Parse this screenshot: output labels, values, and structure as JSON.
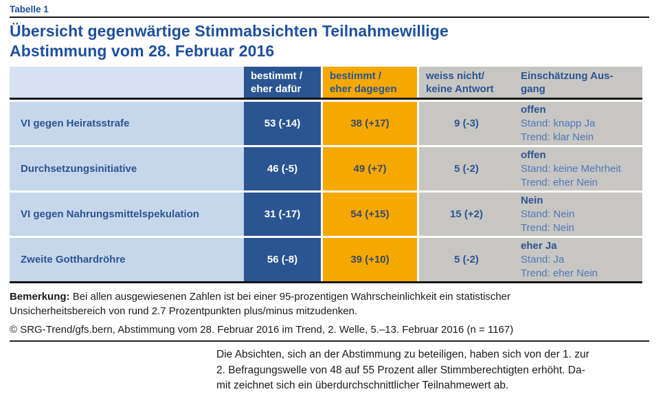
{
  "page": {
    "kicker": "Tabelle 1",
    "title": "Übersicht gegenwärtige Stimmabsichten Teilnahmewillige\nAbstimmung vom 28. Februar 2016"
  },
  "table": {
    "type": "table",
    "columns": {
      "dafuer": "bestimmt /\neher dafür",
      "dagegen": "bestimmt /\neher dagegen",
      "weiss_nicht": "weiss nicht/\nkeine Antwort",
      "einschaetzung": "Einschätzung Aus-\ngang"
    },
    "rows": [
      {
        "label": "VI gegen Heiratsstrafe",
        "dafuer": "53 (-14)",
        "dagegen": "38 (+17)",
        "weiss_nicht": "9 (-3)",
        "verdict": "offen",
        "stand": "Stand: knapp Ja",
        "trend": "Trend: klar Nein"
      },
      {
        "label": "Durchsetzungsinitiative",
        "dafuer": "46 (-5)",
        "dagegen": "49 (+7)",
        "weiss_nicht": "5 (-2)",
        "verdict": "offen",
        "stand": "Stand: keine Mehrheit",
        "trend": "Trend: eher Nein"
      },
      {
        "label": "VI gegen Nahrungsmittelspekulation",
        "dafuer": "31 (-17)",
        "dagegen": "54 (+15)",
        "weiss_nicht": "15 (+2)",
        "verdict": "Nein",
        "stand": "Stand: Nein",
        "trend": "Trend: Nein"
      },
      {
        "label": "Zweite Gotthardröhre",
        "dafuer": "56 (-8)",
        "dagegen": "39 (+10)",
        "weiss_nicht": "5 (-2)",
        "verdict": "eher Ja",
        "stand": "Stand: Ja",
        "trend": "Trend: eher Nein"
      }
    ]
  },
  "notes": {
    "bemerkung_label": "Bemerkung:",
    "bemerkung_text": " Bei allen ausgewiesenen Zahlen ist bei einer 95-prozentigen Wahrscheinlichkeit ein statistischer\nUnsicherheitsbereich von rund 2.7 Prozentpunkten plus/minus mitzudenken.",
    "source": "© SRG-Trend/gfs.bern, Abstimmung vom 28. Februar 2016 im Trend, 2. Welle, 5.–13. Februar 2016 (n = 1167)",
    "comment": "Die Absichten, sich an der Abstimmung zu beteiligen, haben sich von der 1. zur\n2. Befragungswelle von 48 auf 55 Prozent aller Stimmberechtigten erhöht. Da-\nmit zeichnet sich ein überdurchschnittlicher Teilnahmewert ab."
  },
  "colors": {
    "title_blue": "#1d4f9e",
    "dark_blue": "#2b5592",
    "orange": "#f5a800",
    "light_blue_row": "#c6d7ec",
    "light_blue_header": "#d6e2f3",
    "gray": "#c7c6c3",
    "soft_blue_text": "#4d79b8",
    "number_on_orange": "#3a4a61",
    "rule_black": "#151515"
  }
}
